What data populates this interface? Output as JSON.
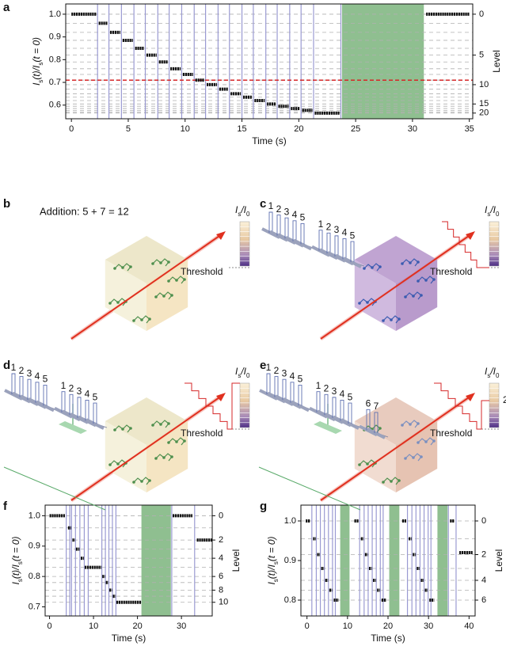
{
  "chart_data": [
    {
      "type": "step",
      "panel_label": "a",
      "xlabel": "Time (s)",
      "ylabel": [
        {
          "text": "I"
        },
        {
          "text": "s",
          "sub": true
        },
        {
          "text": "(t)/"
        },
        {
          "text": "I"
        },
        {
          "text": "s",
          "sub": true
        },
        {
          "text": "(t = 0)"
        }
      ],
      "y2label": "Level",
      "xlim": [
        -0.5,
        35.3
      ],
      "ylim": [
        0.54,
        1.045
      ],
      "xticks": [
        0,
        5,
        10,
        15,
        20,
        25,
        30,
        35
      ],
      "yticks": [
        0.6,
        0.7,
        0.8,
        0.9,
        {
          "value": 1,
          "label": "1.0"
        }
      ],
      "y2ticks": [
        0,
        5,
        10,
        15,
        20
      ],
      "levels": [
        1.0,
        0.96,
        0.92,
        0.885,
        0.85,
        0.82,
        0.79,
        0.76,
        0.735,
        0.71,
        0.69,
        0.67,
        0.65,
        0.635,
        0.62,
        0.605,
        0.595,
        0.585,
        0.577,
        0.57,
        0.565
      ],
      "pulses": [
        2.3,
        3.3,
        4.4,
        5.5,
        6.5,
        7.6,
        8.6,
        9.7,
        10.8,
        11.8,
        12.9,
        13.9,
        15.0,
        16.0,
        17.1,
        18.1,
        19.2,
        20.2,
        21.3,
        23.7
      ],
      "shaded": [
        [
          23.8,
          31.0
        ]
      ],
      "threshold": 0.71,
      "x_start": [
        0,
        2.4,
        3.4,
        4.5,
        5.6,
        6.6,
        7.7,
        8.7,
        9.8,
        10.9,
        11.9,
        13.0,
        14.0,
        15.1,
        16.1,
        17.2,
        18.2,
        19.3,
        20.3,
        21.4,
        31.2
      ],
      "x_end": [
        2.2,
        3.2,
        4.3,
        5.4,
        6.4,
        7.5,
        8.5,
        9.6,
        10.7,
        11.7,
        12.8,
        13.8,
        14.9,
        15.9,
        17.0,
        18.0,
        19.1,
        20.1,
        21.2,
        23.6,
        35.0
      ],
      "values": [
        1.0,
        0.96,
        0.92,
        0.885,
        0.85,
        0.82,
        0.79,
        0.76,
        0.735,
        0.71,
        0.69,
        0.67,
        0.65,
        0.635,
        0.62,
        0.605,
        0.595,
        0.585,
        0.577,
        0.565,
        1.0
      ],
      "color": "#111111",
      "pulse_color": "#9a9ad2",
      "level_color": "#b0b0b0",
      "shade_color": "#8fbf90",
      "threshold_color": "#d62728"
    },
    {
      "type": "step",
      "panel_label": "f",
      "xlabel": "Time (s)",
      "ylabel": [
        {
          "text": "I"
        },
        {
          "text": "s",
          "sub": true
        },
        {
          "text": "(t)/"
        },
        {
          "text": "I"
        },
        {
          "text": "s",
          "sub": true
        },
        {
          "text": "(t = 0)"
        }
      ],
      "y2label": "Level",
      "xlim": [
        -1,
        37
      ],
      "ylim": [
        0.67,
        1.035
      ],
      "xticks": [
        0,
        10,
        20,
        30
      ],
      "yticks": [
        0.7,
        0.8,
        0.9,
        {
          "value": 1,
          "label": "1.0"
        }
      ],
      "y2ticks": [
        0,
        2,
        4,
        6,
        8,
        10
      ],
      "levels": [
        1.0,
        0.96,
        0.92,
        0.89,
        0.86,
        0.83,
        0.8,
        0.78,
        0.755,
        0.735,
        0.715
      ],
      "pulses": [
        3.8,
        4.6,
        5.0,
        5.9,
        6.9,
        7.9,
        8.8,
        11.9,
        12.7,
        13.5,
        14.3,
        15.1,
        27.8,
        33.0
      ],
      "shaded": [
        [
          20.9,
          27.6
        ]
      ],
      "x_start": [
        0,
        4.2,
        5.2,
        6.0,
        7.1,
        8.0,
        12.0,
        12.8,
        13.6,
        14.4,
        15.2,
        28.0,
        33.5
      ],
      "x_end": [
        3.5,
        4.9,
        5.8,
        6.8,
        7.8,
        11.8,
        12.6,
        13.4,
        14.2,
        15.0,
        20.8,
        32.5,
        37.0
      ],
      "values": [
        1.0,
        0.96,
        0.92,
        0.89,
        0.86,
        0.83,
        0.8,
        0.78,
        0.755,
        0.735,
        0.715,
        1.0,
        0.92
      ],
      "color": "#111111",
      "pulse_color": "#9a9ad2",
      "level_color": "#b0b0b0",
      "shade_color": "#8fbf90"
    },
    {
      "type": "step",
      "panel_label": "g",
      "xlabel": "Time (s)",
      "ylabel": [
        {
          "text": "I"
        },
        {
          "text": "s",
          "sub": true
        },
        {
          "text": "(t)/"
        },
        {
          "text": "I"
        },
        {
          "text": "s",
          "sub": true
        },
        {
          "text": "(t = 0)"
        }
      ],
      "y2label": "Level",
      "xlim": [
        -1.5,
        41.5
      ],
      "ylim": [
        0.76,
        1.04
      ],
      "xticks": [
        0,
        10,
        20,
        30,
        40
      ],
      "yticks": [
        0.8,
        0.9,
        {
          "value": 1,
          "label": "1.0"
        }
      ],
      "y2ticks": [
        0,
        2,
        4,
        6
      ],
      "levels": [
        1.0,
        0.955,
        0.915,
        0.88,
        0.85,
        0.825,
        0.8
      ],
      "pulses": [
        1.2,
        2.3,
        3.3,
        4.3,
        5.3,
        6.3,
        7.0,
        13.0,
        14.1,
        15.1,
        16.1,
        17.1,
        18.1,
        18.8,
        24.8,
        25.9,
        26.9,
        27.9,
        28.9,
        29.9,
        30.6,
        34.9,
        36.8
      ],
      "shaded": [
        [
          8.2,
          10.5
        ],
        [
          20.3,
          22.8
        ],
        [
          32.2,
          34.7
        ]
      ],
      "x_start": [
        -0.3,
        1.5,
        2.5,
        3.5,
        4.5,
        5.5,
        6.6,
        11.7,
        13.3,
        14.3,
        15.3,
        16.3,
        17.3,
        18.4,
        23.5,
        25.1,
        26.1,
        27.1,
        28.1,
        29.1,
        30.2,
        35.3,
        37.6
      ],
      "x_end": [
        0.8,
        2.2,
        3.2,
        4.2,
        5.2,
        6.2,
        7.8,
        12.8,
        14.0,
        15.0,
        16.0,
        17.0,
        18.0,
        19.6,
        24.6,
        25.8,
        26.8,
        27.8,
        28.8,
        29.8,
        31.4,
        36.3,
        41.0
      ],
      "values": [
        1.0,
        0.955,
        0.915,
        0.88,
        0.85,
        0.825,
        0.8,
        1.0,
        0.955,
        0.915,
        0.88,
        0.85,
        0.825,
        0.8,
        1.0,
        0.955,
        0.915,
        0.88,
        0.85,
        0.825,
        0.8,
        1.0,
        0.92
      ],
      "color": "#111111",
      "pulse_color": "#9a9ad2",
      "level_color": "#b0b0b0",
      "shade_color": "#8fbf90"
    }
  ],
  "diagrams": [
    {
      "panel_label": "b",
      "caption": "Addition: 5 + 7 = 12",
      "colorbar_label": [
        {
          "text": "I"
        },
        {
          "text": "s",
          "sub": true
        },
        {
          "text": "/I"
        },
        {
          "text": "0",
          "sub": true
        }
      ],
      "threshold": "Threshold"
    },
    {
      "panel_label": "c",
      "pulse_labels": [
        "1",
        "2",
        "3",
        "4",
        "5",
        "1",
        "2",
        "3",
        "4",
        "5"
      ],
      "colorbar_label": [
        {
          "text": "I"
        },
        {
          "text": "s",
          "sub": true
        },
        {
          "text": "/I"
        },
        {
          "text": "0",
          "sub": true
        }
      ],
      "threshold": "Threshold"
    },
    {
      "panel_label": "d",
      "pulse_labels": [
        "1",
        "2",
        "3",
        "4",
        "5",
        "1",
        "2",
        "3",
        "4",
        "5"
      ],
      "colorbar_label": [
        {
          "text": "I"
        },
        {
          "text": "s",
          "sub": true
        },
        {
          "text": "/I"
        },
        {
          "text": "0",
          "sub": true
        }
      ],
      "threshold": "Threshold"
    },
    {
      "panel_label": "e",
      "pulse_labels": [
        "1",
        "2",
        "3",
        "4",
        "5",
        "1",
        "2",
        "3",
        "4",
        "5",
        "6",
        "7"
      ],
      "colorbar_label": [
        {
          "text": "I"
        },
        {
          "text": "s",
          "sub": true
        },
        {
          "text": "/I"
        },
        {
          "text": "0",
          "sub": true
        }
      ],
      "threshold": "Threshold",
      "level_label": "2"
    }
  ]
}
